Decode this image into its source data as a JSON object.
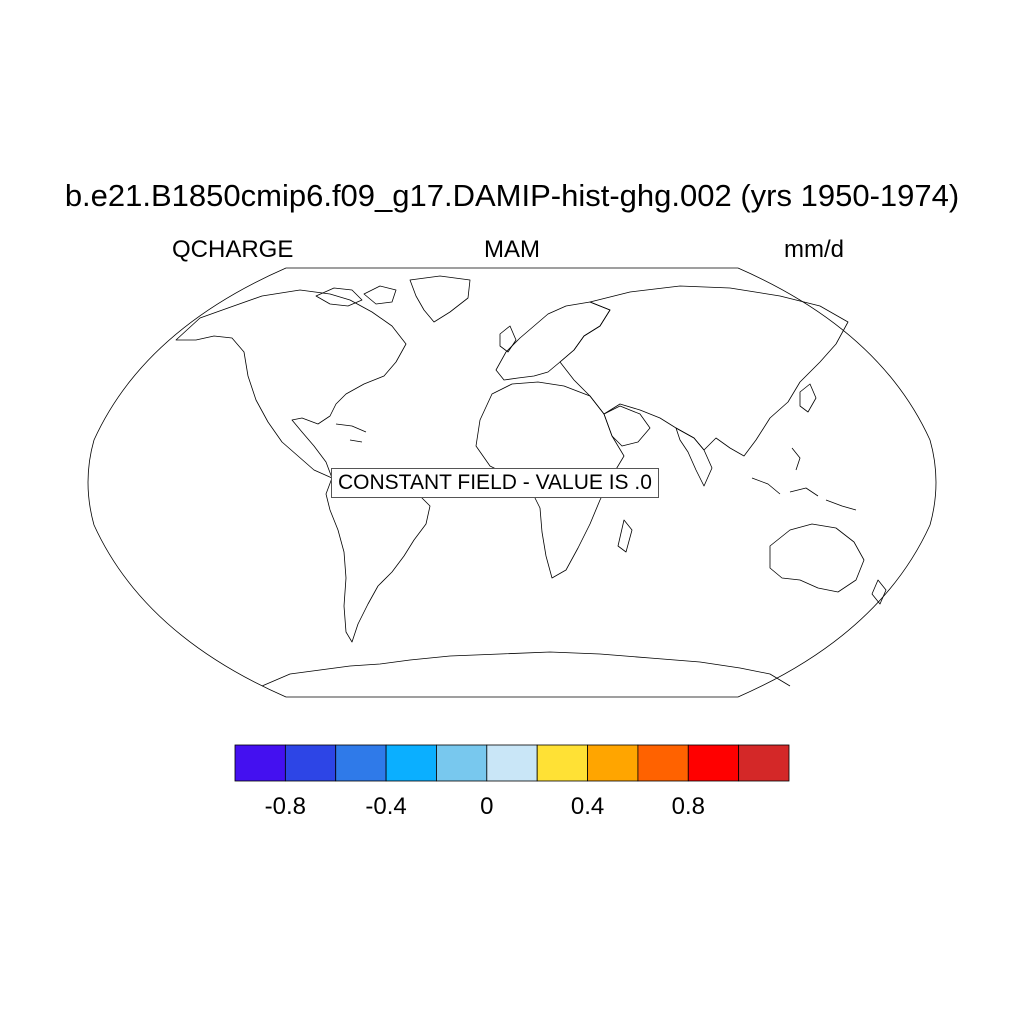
{
  "title": "b.e21.B1850cmip6.f09_g17.DAMIP-hist-ghg.002 (yrs 1950-1974)",
  "left_label": "QCHARGE",
  "center_label": "MAM",
  "right_label": "mm/d",
  "map_note": "CONSTANT FIELD - VALUE IS .0",
  "projection": "robinson",
  "colorbar": {
    "colors": [
      "#4410f0",
      "#2d45e6",
      "#2f7ae9",
      "#0bafff",
      "#78c8ee",
      "#c9e6f7",
      "#ffe135",
      "#ffa500",
      "#ff6200",
      "#ff0000",
      "#d42828"
    ],
    "boundaries": [
      -1.0,
      -0.8,
      -0.6,
      -0.4,
      -0.2,
      0,
      0.2,
      0.4,
      0.6,
      0.8,
      1.0
    ],
    "tick_labels": [
      "-0.8",
      "-0.4",
      "0",
      "0.4",
      "0.8"
    ],
    "tick_values": [
      -0.8,
      -0.4,
      0,
      0.4,
      0.8
    ]
  }
}
